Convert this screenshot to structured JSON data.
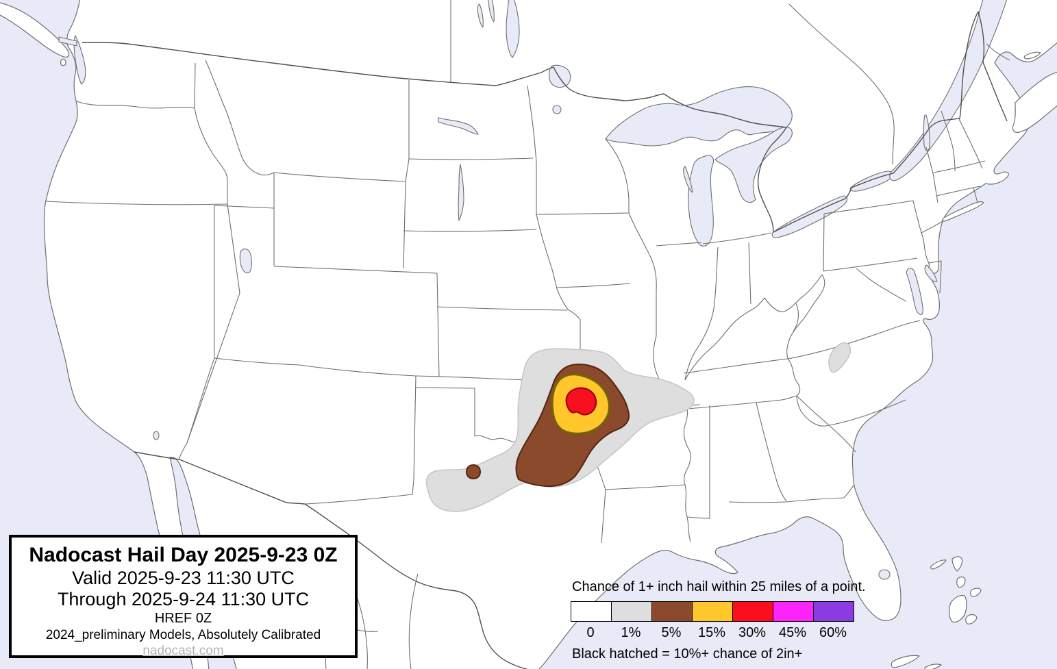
{
  "title_box": {
    "title": "Nadocast Hail Day 2025-9-23 0Z",
    "valid": "Valid 2025-9-23 11:30 UTC",
    "through": "Through 2025-9-24 11:30 UTC",
    "model": "HREF 0Z",
    "note": "2024_preliminary Models, Absolutely Calibrated",
    "website": "nadocast.com"
  },
  "legend": {
    "title": "Chance of 1+ inch hail within 25 miles of a point.",
    "items": [
      {
        "label": "0",
        "color": "#FFFFFF"
      },
      {
        "label": "1%",
        "color": "#DEDEDE"
      },
      {
        "label": "5%",
        "color": "#8B4A2B"
      },
      {
        "label": "15%",
        "color": "#FFC72C"
      },
      {
        "label": "30%",
        "color": "#FA0F1E"
      },
      {
        "label": "45%",
        "color": "#FB24FB"
      },
      {
        "label": "60%",
        "color": "#8A3BE2"
      }
    ],
    "note": "Black hatched = 10%+ chance of 2in+"
  },
  "map": {
    "colors": {
      "water": "#E8EBF7",
      "land": "#FFFFFF",
      "state_border": "#6E6E6E",
      "national_border": "#4F4F4F"
    },
    "contours": [
      {
        "name": "1pct",
        "probability": "1%",
        "color": "#DEDEDE",
        "stroke": "#C6C6C6"
      },
      {
        "name": "5pct",
        "probability": "5%",
        "color": "#8B4A2B",
        "stroke": "#52260F"
      },
      {
        "name": "15pct",
        "probability": "15%",
        "color": "#FFC72C",
        "stroke": "#6B6B00"
      },
      {
        "name": "30pct",
        "probability": "30%",
        "color": "#FA0F1E",
        "stroke": "#9C030E"
      }
    ],
    "forecast_region": "Southern Plains (eastern Oklahoma / southeast Kansas / southwest Missouri), small 1% area in eastern Tennessee, small 5% spot in western Oklahoma"
  }
}
